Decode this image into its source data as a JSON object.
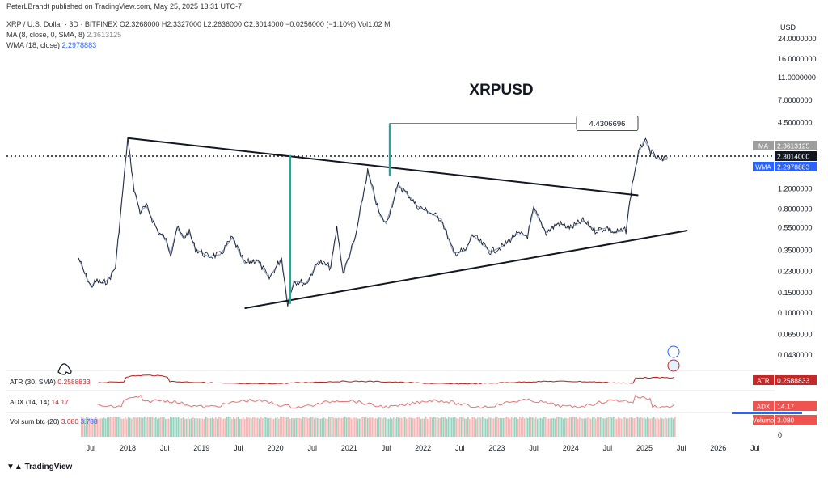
{
  "header": {
    "published": "PeterLBrandt published on TradingView.com, May 25, 2025 13:31 UTC-7",
    "symbol": "XRP / U.S. Dollar · 3D · BITFINEX",
    "ohlc": "O2.3268000 H2.3327000 L2.2636000 C2.3014000 −0.0256000 (−1.10%) Vol1.02 M",
    "ma_label": "MA (8, close, 0, SMA, 8)",
    "ma_value": "2.3613125",
    "wma_label": "WMA (18, close)",
    "wma_value": "2.2978883"
  },
  "chart_data": {
    "type": "line",
    "title": "XRPUSD",
    "y_scale": "log",
    "currency": "USD",
    "y_ticks": [
      "24.0000000",
      "16.0000000",
      "11.0000000",
      "7.0000000",
      "4.5000000",
      "2.3014000",
      "1.2000000",
      "0.8000000",
      "0.5500000",
      "0.3500000",
      "0.2300000",
      "0.1500000",
      "0.1000000",
      "0.0650000",
      "0.0430000"
    ],
    "x_ticks": [
      "Jul",
      "2018",
      "Jul",
      "2019",
      "Jul",
      "2020",
      "Jul",
      "2021",
      "Jul",
      "2022",
      "Jul",
      "2023",
      "Jul",
      "2024",
      "Jul",
      "2025",
      "Jul",
      "2026",
      "Jul"
    ],
    "price_series": [
      {
        "date": "2017-05",
        "close": 0.3
      },
      {
        "date": "2017-06",
        "close": 0.22
      },
      {
        "date": "2017-07",
        "close": 0.17
      },
      {
        "date": "2017-08",
        "close": 0.19
      },
      {
        "date": "2017-09",
        "close": 0.18
      },
      {
        "date": "2017-10",
        "close": 0.2
      },
      {
        "date": "2017-11",
        "close": 0.25
      },
      {
        "date": "2017-12",
        "close": 0.9
      },
      {
        "date": "2018-01",
        "close": 3.3
      },
      {
        "date": "2018-02",
        "close": 1.2
      },
      {
        "date": "2018-03",
        "close": 0.75
      },
      {
        "date": "2018-04",
        "close": 0.85
      },
      {
        "date": "2018-05",
        "close": 0.65
      },
      {
        "date": "2018-06",
        "close": 0.5
      },
      {
        "date": "2018-07",
        "close": 0.45
      },
      {
        "date": "2018-08",
        "close": 0.33
      },
      {
        "date": "2018-09",
        "close": 0.55
      },
      {
        "date": "2018-10",
        "close": 0.45
      },
      {
        "date": "2018-11",
        "close": 0.5
      },
      {
        "date": "2018-12",
        "close": 0.36
      },
      {
        "date": "2019-02",
        "close": 0.31
      },
      {
        "date": "2019-04",
        "close": 0.32
      },
      {
        "date": "2019-06",
        "close": 0.45
      },
      {
        "date": "2019-08",
        "close": 0.27
      },
      {
        "date": "2019-10",
        "close": 0.29
      },
      {
        "date": "2019-12",
        "close": 0.2
      },
      {
        "date": "2020-02",
        "close": 0.3
      },
      {
        "date": "2020-03",
        "close": 0.12
      },
      {
        "date": "2020-04",
        "close": 0.19
      },
      {
        "date": "2020-06",
        "close": 0.18
      },
      {
        "date": "2020-08",
        "close": 0.28
      },
      {
        "date": "2020-10",
        "close": 0.25
      },
      {
        "date": "2020-11",
        "close": 0.55
      },
      {
        "date": "2020-12",
        "close": 0.22
      },
      {
        "date": "2021-02",
        "close": 0.45
      },
      {
        "date": "2021-04",
        "close": 1.7
      },
      {
        "date": "2021-06",
        "close": 0.7
      },
      {
        "date": "2021-07",
        "close": 0.6
      },
      {
        "date": "2021-09",
        "close": 1.3
      },
      {
        "date": "2021-11",
        "close": 1.0
      },
      {
        "date": "2021-12",
        "close": 0.85
      },
      {
        "date": "2022-02",
        "close": 0.75
      },
      {
        "date": "2022-04",
        "close": 0.65
      },
      {
        "date": "2022-06",
        "close": 0.33
      },
      {
        "date": "2022-08",
        "close": 0.35
      },
      {
        "date": "2022-09",
        "close": 0.48
      },
      {
        "date": "2022-11",
        "close": 0.38
      },
      {
        "date": "2022-12",
        "close": 0.34
      },
      {
        "date": "2023-02",
        "close": 0.38
      },
      {
        "date": "2023-04",
        "close": 0.48
      },
      {
        "date": "2023-06",
        "close": 0.47
      },
      {
        "date": "2023-07",
        "close": 0.8
      },
      {
        "date": "2023-09",
        "close": 0.5
      },
      {
        "date": "2023-11",
        "close": 0.6
      },
      {
        "date": "2024-01",
        "close": 0.55
      },
      {
        "date": "2024-03",
        "close": 0.63
      },
      {
        "date": "2024-05",
        "close": 0.52
      },
      {
        "date": "2024-07",
        "close": 0.55
      },
      {
        "date": "2024-08",
        "close": 0.5
      },
      {
        "date": "2024-10",
        "close": 0.52
      },
      {
        "date": "2024-11",
        "close": 1.3
      },
      {
        "date": "2024-12",
        "close": 2.4
      },
      {
        "date": "2025-01",
        "close": 3.2
      },
      {
        "date": "2025-02",
        "close": 2.5
      },
      {
        "date": "2025-03",
        "close": 2.2
      },
      {
        "date": "2025-04",
        "close": 2.1
      },
      {
        "date": "2025-05",
        "close": 2.3
      }
    ],
    "annotations": {
      "target_label": "4.4306696",
      "upper_trendline": [
        {
          "date": "2018-01",
          "price": 3.3
        },
        {
          "date": "2024-12",
          "price": 1.05
        }
      ],
      "lower_trendline": [
        {
          "date": "2019-08",
          "price": 0.11
        },
        {
          "date": "2025-08",
          "price": 0.52
        }
      ],
      "current_price_line": 2.3014
    },
    "price_scale_labels": {
      "ma": {
        "tag": "MA",
        "value": "2.3613125",
        "color": "#9e9e9e"
      },
      "close": {
        "value": "2.3014000",
        "color": "#131722"
      },
      "wma": {
        "tag": "WMA",
        "value": "2.2978883",
        "color": "#2962ff"
      },
      "atr": {
        "tag": "ATR",
        "value": "0.2588833",
        "color": "#c62828"
      },
      "adx": {
        "tag": "ADX",
        "value": "14.17",
        "color": "#ef5350"
      },
      "volume": {
        "tag": "Volume",
        "value": "3.080",
        "color": "#ef5350"
      }
    }
  },
  "indicators": {
    "atr_label": "ATR (30, SMA)",
    "atr_value": "0.2588833",
    "adx_label": "ADX (14, 14)",
    "adx_value": "14.17",
    "vol_label": "Vol sum btc (20)",
    "vol_value_1": "3.080",
    "vol_value_2": "3.788",
    "vol_axis_zero": "0"
  },
  "footer": {
    "brand": "TradingView"
  }
}
